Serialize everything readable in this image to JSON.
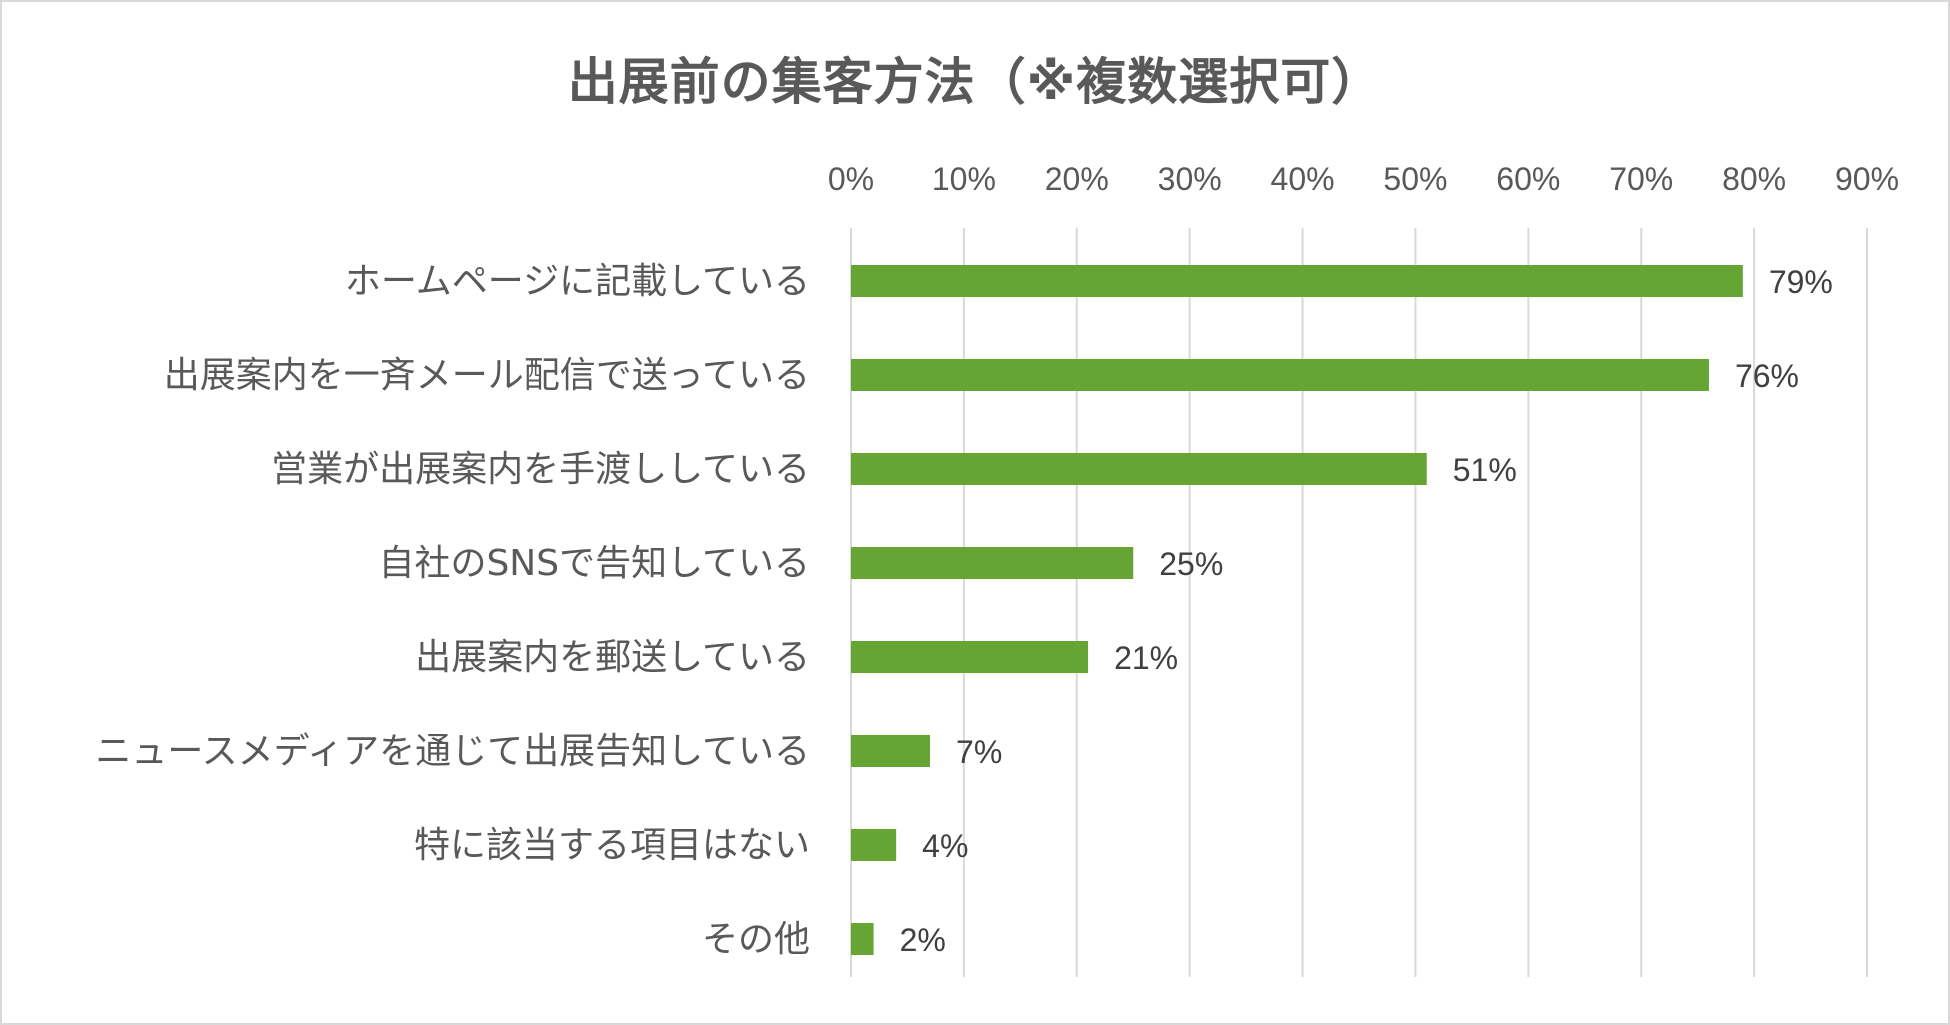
{
  "chart_data": {
    "type": "bar",
    "orientation": "horizontal",
    "title": "出展前の集客方法（※複数選択可）",
    "categories": [
      "ホームページに記載している",
      "出展案内を一斉メール配信で送っている",
      "営業が出展案内を手渡ししている",
      "自社のSNSで告知している",
      "出展案内を郵送している",
      "ニュースメディアを通じて出展告知している",
      "特に該当する項目はない",
      "その他"
    ],
    "values": [
      0.79,
      0.76,
      0.51,
      0.25,
      0.21,
      0.07,
      0.04,
      0.02
    ],
    "data_labels": [
      "79%",
      "76%",
      "51%",
      "25%",
      "21%",
      "7%",
      "4%",
      "2%"
    ],
    "xaxis": {
      "min": 0,
      "max": 0.9,
      "position": "top",
      "ticks": [
        0,
        0.1,
        0.2,
        0.3,
        0.4,
        0.5,
        0.6,
        0.7,
        0.8,
        0.9
      ],
      "tick_labels": [
        "0%",
        "10%",
        "20%",
        "30%",
        "40%",
        "50%",
        "60%",
        "70%",
        "80%",
        "90%"
      ]
    },
    "grid": "vertical",
    "legend": "none",
    "colors": {
      "bar": "#66a433",
      "grid": "#d9d9d9",
      "text": "#595959",
      "frame": "#d9d9d9"
    }
  }
}
